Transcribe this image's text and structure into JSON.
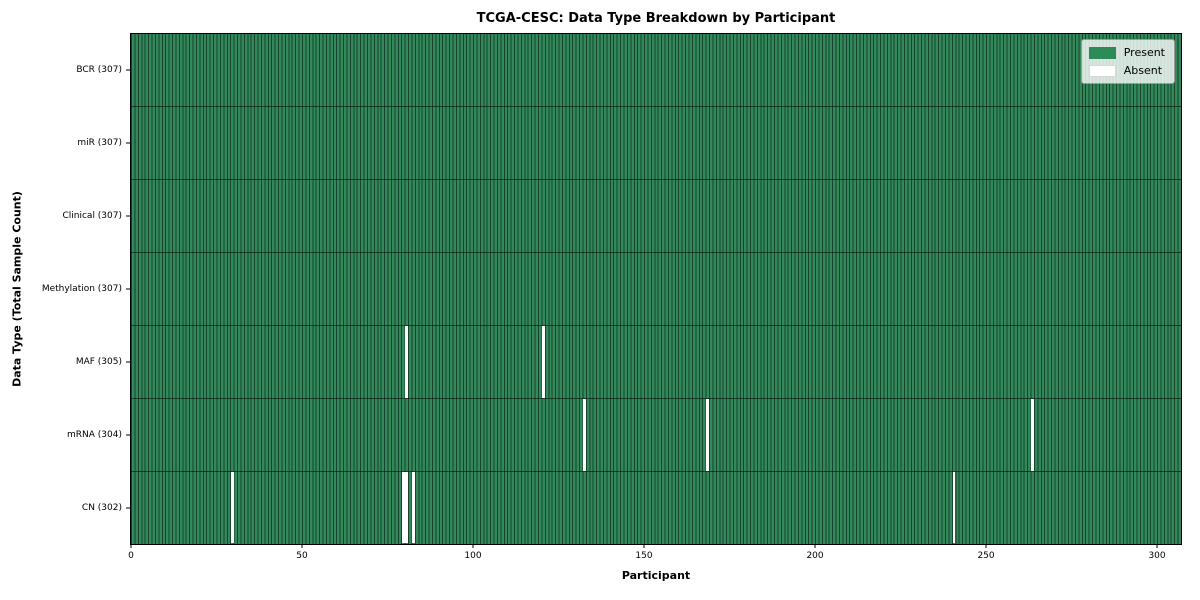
{
  "chart_data": {
    "type": "heatmap",
    "title": "TCGA-CESC: Data Type Breakdown by Participant",
    "xlabel": "Participant",
    "ylabel": "Data Type (Total Sample Count)",
    "x_range": [
      0,
      307
    ],
    "xticks": [
      0,
      50,
      100,
      150,
      200,
      250,
      300
    ],
    "n_participants": 307,
    "legend_position": "upper right",
    "legend": {
      "entries": [
        {
          "label": "Present",
          "color": "#2e8b57",
          "kind": "present"
        },
        {
          "label": "Absent",
          "color": "#ffffff",
          "kind": "absent"
        }
      ]
    },
    "colors": {
      "present": "#2e8b57",
      "absent": "#ffffff",
      "cell_edge": "#1b5134",
      "row_separator": "#17311f",
      "spine": "#000000"
    },
    "rows": [
      {
        "label": "BCR (307)",
        "data_type": "BCR",
        "present_count": 307,
        "absent_participants": []
      },
      {
        "label": "miR (307)",
        "data_type": "miR",
        "present_count": 307,
        "absent_participants": []
      },
      {
        "label": "Clinical (307)",
        "data_type": "Clinical",
        "present_count": 307,
        "absent_participants": []
      },
      {
        "label": "Methylation (307)",
        "data_type": "Methylation",
        "present_count": 307,
        "absent_participants": []
      },
      {
        "label": "MAF (305)",
        "data_type": "MAF",
        "present_count": 305,
        "absent_participants": [
          80,
          120
        ]
      },
      {
        "label": "mRNA (304)",
        "data_type": "mRNA",
        "present_count": 304,
        "absent_participants": [
          132,
          168,
          263
        ]
      },
      {
        "label": "CN (302)",
        "data_type": "CN",
        "present_count": 302,
        "absent_participants": [
          29,
          79,
          80,
          82,
          240
        ]
      }
    ]
  }
}
